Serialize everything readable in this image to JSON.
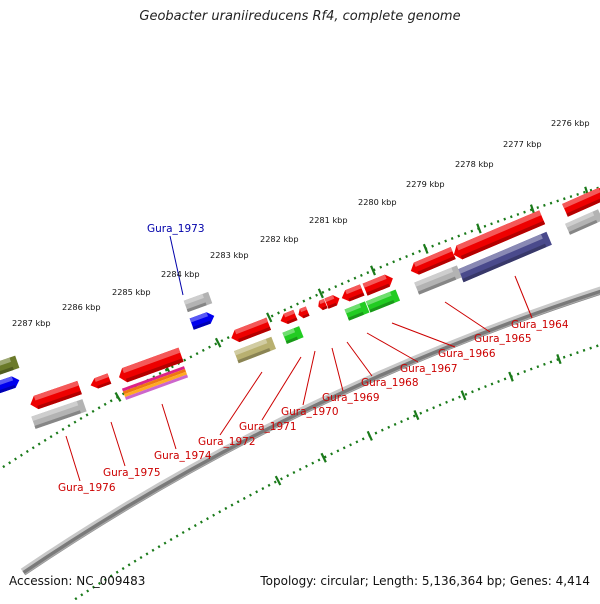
{
  "title": "Geobacter uraniireducens Rf4, complete genome",
  "footer": {
    "accession": "Accession: NC_009483",
    "info": "Topology: circular; Length: 5,136,364 bp; Genes: 4,414"
  },
  "colors": {
    "backbone": "#7a7a7a",
    "tick": "#1a7a1a",
    "label_red": "#cc0000",
    "label_blue": "#0000aa",
    "gene_red": "#ee0000",
    "gene_gray": "#b3b3b3",
    "gene_blue": "#0000ee",
    "gene_green": "#22cc22",
    "gene_olive": "#b8b070",
    "gene_purple": "#4a4a8c",
    "gene_darkolive": "#6b7a2a",
    "gene_magenta_stack": "#dd2288"
  },
  "scale_labels": [
    "2276 kbp",
    "2277 kbp",
    "2278 kbp",
    "2279 kbp",
    "2280 kbp",
    "2281 kbp",
    "2282 kbp",
    "2283 kbp",
    "2284 kbp",
    "2285 kbp",
    "2286 kbp",
    "2287 kbp"
  ],
  "gene_labels": [
    {
      "text": "Gura_1964",
      "color": "red"
    },
    {
      "text": "Gura_1965",
      "color": "red"
    },
    {
      "text": "Gura_1966",
      "color": "red"
    },
    {
      "text": "Gura_1967",
      "color": "red"
    },
    {
      "text": "Gura_1968",
      "color": "red"
    },
    {
      "text": "Gura_1969",
      "color": "red"
    },
    {
      "text": "Gura_1970",
      "color": "red"
    },
    {
      "text": "Gura_1971",
      "color": "red"
    },
    {
      "text": "Gura_1972",
      "color": "red"
    },
    {
      "text": "Gura_1973",
      "color": "blue"
    },
    {
      "text": "Gura_1974",
      "color": "red"
    },
    {
      "text": "Gura_1975",
      "color": "red"
    },
    {
      "text": "Gura_1976",
      "color": "red"
    }
  ]
}
